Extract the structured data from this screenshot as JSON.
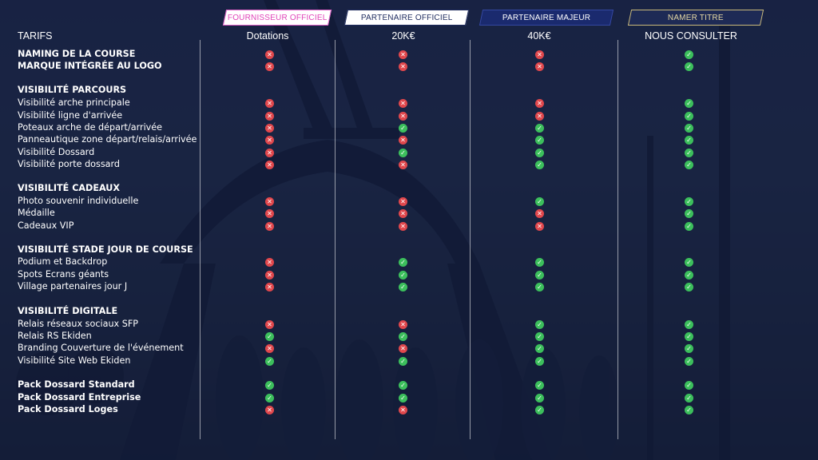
{
  "badges": {
    "fournisseur": "FOURNISSEUR OFFICIEL",
    "partenaire": "PARTENAIRE OFFICIEL",
    "majeur": "PARTENAIRE MAJEUR",
    "namer": "NAMER TITRE"
  },
  "columns": {
    "label": "TARIFS",
    "c1": "Dotations",
    "c2": "20K€",
    "c3": "40K€",
    "c4": "NOUS CONSULTER"
  },
  "rows": [
    {
      "label": "NAMING DE LA COURSE",
      "section": true,
      "v": [
        "no",
        "no",
        "no",
        "yes"
      ]
    },
    {
      "label": "MARQUE INTÉGRÉE AU LOGO",
      "section": true,
      "v": [
        "no",
        "no",
        "no",
        "yes"
      ]
    },
    {
      "label": "VISIBILITÉ PARCOURS",
      "section": true,
      "v": []
    },
    {
      "label": "Visibilité arche principale",
      "v": [
        "no",
        "no",
        "no",
        "yes"
      ]
    },
    {
      "label": "Visibilité ligne d'arrivée",
      "v": [
        "no",
        "no",
        "no",
        "yes"
      ]
    },
    {
      "label": "Poteaux arche de départ/arrivée",
      "v": [
        "no",
        "yes",
        "yes",
        "yes"
      ]
    },
    {
      "label": "Panneautique zone départ/relais/arrivée",
      "v": [
        "no",
        "no",
        "yes",
        "yes"
      ]
    },
    {
      "label": "Visibilité Dossard",
      "v": [
        "no",
        "yes",
        "yes",
        "yes"
      ]
    },
    {
      "label": "Visibilité porte dossard",
      "v": [
        "no",
        "no",
        "yes",
        "yes"
      ]
    },
    {
      "label": "VISIBILITÉ CADEAUX",
      "section": true,
      "v": []
    },
    {
      "label": "Photo souvenir individuelle",
      "v": [
        "no",
        "no",
        "yes",
        "yes"
      ]
    },
    {
      "label": "Médaille",
      "v": [
        "no",
        "no",
        "no",
        "yes"
      ]
    },
    {
      "label": "Cadeaux VIP",
      "v": [
        "no",
        "no",
        "no",
        "yes"
      ]
    },
    {
      "label": "VISIBILITÉ STADE JOUR DE COURSE",
      "section": true,
      "v": []
    },
    {
      "label": "Podium et Backdrop",
      "v": [
        "no",
        "yes",
        "yes",
        "yes"
      ]
    },
    {
      "label": "Spots Ecrans géants",
      "v": [
        "no",
        "yes",
        "yes",
        "yes"
      ]
    },
    {
      "label": "Village partenaires jour J",
      "v": [
        "no",
        "yes",
        "yes",
        "yes"
      ]
    },
    {
      "label": "VISIBILITÉ DIGITALE",
      "section": true,
      "v": []
    },
    {
      "label": "Relais réseaux sociaux SFP",
      "v": [
        "no",
        "no",
        "yes",
        "yes"
      ]
    },
    {
      "label": "Relais RS Ekiden",
      "v": [
        "yes",
        "yes",
        "yes",
        "yes"
      ]
    },
    {
      "label": "Branding Couverture de l'événement",
      "v": [
        "no",
        "no",
        "yes",
        "yes"
      ]
    },
    {
      "label": "Visibilité Site Web Ekiden",
      "v": [
        "yes",
        "yes",
        "yes",
        "yes"
      ]
    },
    {
      "label": "Pack Dossard Standard",
      "section": true,
      "v": [
        "yes",
        "yes",
        "yes",
        "yes"
      ]
    },
    {
      "label": "Pack Dossard Entreprise",
      "section": true,
      "v": [
        "yes",
        "yes",
        "yes",
        "yes"
      ]
    },
    {
      "label": "Pack Dossard Loges",
      "section": true,
      "v": [
        "no",
        "no",
        "yes",
        "yes"
      ]
    }
  ]
}
